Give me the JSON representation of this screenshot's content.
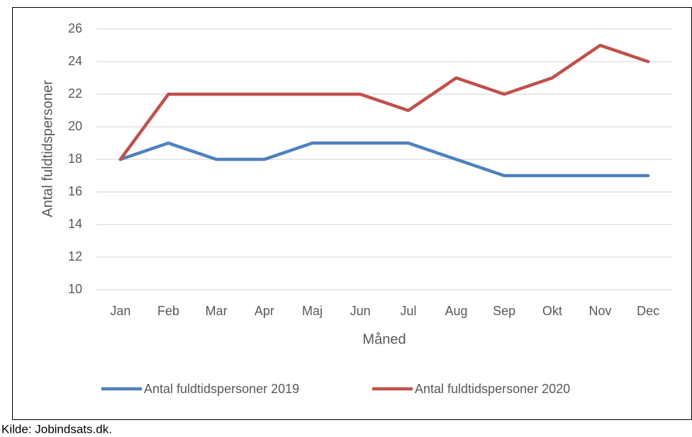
{
  "chart_data": {
    "type": "line",
    "x_label": "Måned",
    "y_label": "Antal fuldtidspersoner",
    "categories": [
      "Jan",
      "Feb",
      "Mar",
      "Apr",
      "Maj",
      "Jun",
      "Jul",
      "Aug",
      "Sep",
      "Okt",
      "Nov",
      "Dec"
    ],
    "series": [
      {
        "name": "Antal fuldtidspersoner 2019",
        "color": "#4f81bd",
        "values": [
          18,
          19,
          18,
          18,
          19,
          19,
          19,
          18,
          17,
          17,
          17,
          17
        ]
      },
      {
        "name": "Antal fuldtidspersoner 2020",
        "color": "#c0504d",
        "values": [
          18,
          22,
          22,
          22,
          22,
          22,
          21,
          23,
          22,
          23,
          25,
          24
        ]
      }
    ],
    "ylim": [
      10,
      26
    ],
    "yticks": [
      10,
      12,
      14,
      16,
      18,
      20,
      22,
      24,
      26
    ],
    "grid": true,
    "legend": "bottom"
  },
  "source": "Kilde: Jobindsats.dk."
}
